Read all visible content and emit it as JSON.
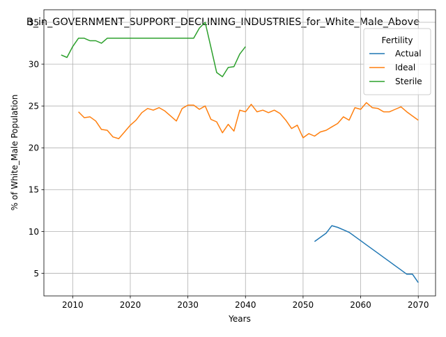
{
  "chart_data": {
    "type": "line",
    "title": "B_in_GOVERNMENT_SUPPORT_DECLINING_INDUSTRIES_for_White_Male_Above",
    "xlabel": "Years",
    "ylabel": "% of White_Male Population",
    "xlim": [
      2005,
      2073
    ],
    "ylim": [
      2.3,
      36.5
    ],
    "xticks": [
      2010,
      2020,
      2030,
      2040,
      2050,
      2060,
      2070
    ],
    "yticks": [
      5,
      10,
      15,
      20,
      25,
      30,
      35
    ],
    "grid": true,
    "legend": {
      "title": "Fertility",
      "placement": "top-right"
    },
    "series": [
      {
        "name": "Actual",
        "color": "#1f77b4",
        "x": [
          2052,
          2053,
          2054,
          2055,
          2056,
          2057,
          2058,
          2059,
          2060,
          2061,
          2062,
          2063,
          2064,
          2065,
          2066,
          2067,
          2068,
          2069,
          2070
        ],
        "y": [
          8.8,
          9.3,
          9.8,
          10.7,
          10.5,
          10.2,
          9.9,
          9.4,
          8.9,
          8.4,
          7.9,
          7.4,
          6.9,
          6.4,
          5.9,
          5.4,
          4.9,
          4.9,
          3.9
        ]
      },
      {
        "name": "Ideal",
        "color": "#ff7f0e",
        "x": [
          2011,
          2012,
          2013,
          2014,
          2015,
          2016,
          2017,
          2018,
          2019,
          2020,
          2021,
          2022,
          2023,
          2024,
          2025,
          2026,
          2027,
          2028,
          2029,
          2030,
          2031,
          2032,
          2033,
          2034,
          2035,
          2036,
          2037,
          2038,
          2039,
          2040,
          2041,
          2042,
          2043,
          2044,
          2045,
          2046,
          2047,
          2048,
          2049,
          2050,
          2051,
          2052,
          2053,
          2054,
          2055,
          2056,
          2057,
          2058,
          2059,
          2060,
          2061,
          2062,
          2063,
          2064,
          2065,
          2066,
          2067,
          2068,
          2069,
          2070
        ],
        "y": [
          24.3,
          23.6,
          23.7,
          23.2,
          22.2,
          22.1,
          21.3,
          21.1,
          21.9,
          22.7,
          23.3,
          24.2,
          24.7,
          24.5,
          24.8,
          24.4,
          23.8,
          23.2,
          24.7,
          25.1,
          25.1,
          24.6,
          25.0,
          23.4,
          23.1,
          21.8,
          22.8,
          22.0,
          24.5,
          24.3,
          25.2,
          24.3,
          24.5,
          24.2,
          24.5,
          24.1,
          23.3,
          22.3,
          22.7,
          21.2,
          21.7,
          21.4,
          21.9,
          22.1,
          22.5,
          22.9,
          23.7,
          23.3,
          24.8,
          24.6,
          25.4,
          24.8,
          24.7,
          24.3,
          24.3,
          24.6,
          24.9,
          24.3,
          23.8,
          23.3
        ]
      },
      {
        "name": "Sterile",
        "color": "#2ca02c",
        "x": [
          2008,
          2009,
          2010,
          2011,
          2012,
          2013,
          2014,
          2015,
          2016,
          2017,
          2018,
          2019,
          2020,
          2021,
          2022,
          2023,
          2024,
          2025,
          2026,
          2027,
          2028,
          2029,
          2030,
          2031,
          2032,
          2033,
          2034,
          2035,
          2036,
          2037,
          2038,
          2039,
          2040
        ],
        "y": [
          31.1,
          30.8,
          32.1,
          33.1,
          33.1,
          32.8,
          32.8,
          32.5,
          33.1,
          33.1,
          33.1,
          33.1,
          33.1,
          33.1,
          33.1,
          33.1,
          33.1,
          33.1,
          33.1,
          33.1,
          33.1,
          33.1,
          33.1,
          33.1,
          34.3,
          35.0,
          32.0,
          29.0,
          28.5,
          29.6,
          29.7,
          31.2,
          32.1
        ]
      }
    ]
  }
}
